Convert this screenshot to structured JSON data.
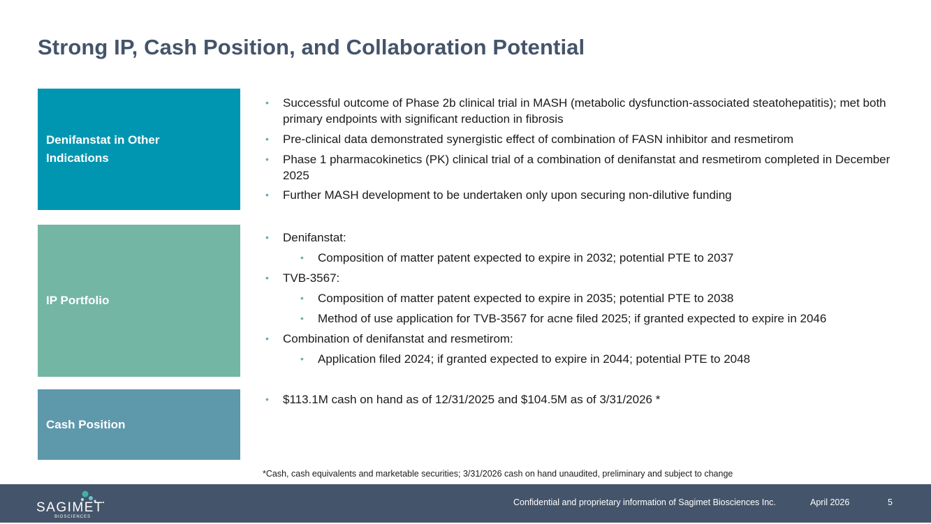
{
  "title": "Strong IP, Cash Position, and Collaboration Potential",
  "sections": [
    {
      "label": "Denifanstat in Other Indications",
      "bullets": [
        "Successful outcome of Phase 2b clinical trial in MASH (metabolic dysfunction-associated steatohepatitis); met both primary endpoints with significant reduction in fibrosis",
        "Pre-clinical data demonstrated synergistic effect of combination of FASN inhibitor and resmetirom",
        "Phase 1 pharmacokinetics (PK) clinical trial of a combination of denifanstat and resmetirom completed in December 2025",
        "Further MASH development to be undertaken only upon securing non-dilutive funding"
      ]
    },
    {
      "label": "IP Portfolio",
      "items": [
        {
          "text": "Denifanstat:",
          "sub": [
            "Composition of matter patent expected to expire in 2032; potential PTE to 2037"
          ]
        },
        {
          "text": "TVB-3567:",
          "sub": [
            "Composition of matter patent expected to expire in 2035; potential PTE to 2038",
            "Method of use application for TVB-3567 for acne filed 2025; if granted expected to expire in 2046"
          ]
        },
        {
          "text": "Combination of denifanstat and resmetirom:",
          "sub": [
            "Application filed 2024; if granted expected to expire in 2044; potential PTE to 2048"
          ]
        }
      ]
    },
    {
      "label": "Cash Position",
      "bullets": [
        "$113.1M cash on hand as of 12/31/2025 and $104.5M as of 3/31/2026 *"
      ]
    }
  ],
  "footnote": "*Cash, cash equivalents and marketable securities; 3/31/2026 cash on hand unaudited, preliminary and subject to change",
  "footer": {
    "logo_text": "SAGIMET",
    "logo_subtext": "BIOSCIENCES",
    "confidential": "Confidential and proprietary information of Sagimet Biosciences Inc.",
    "date": "April 2026",
    "page": "5"
  },
  "colors": {
    "title": "#44546a",
    "box1": "#0096b1",
    "box2": "#73b6a4",
    "box3": "#5e98ab",
    "footer": "#44546a"
  }
}
